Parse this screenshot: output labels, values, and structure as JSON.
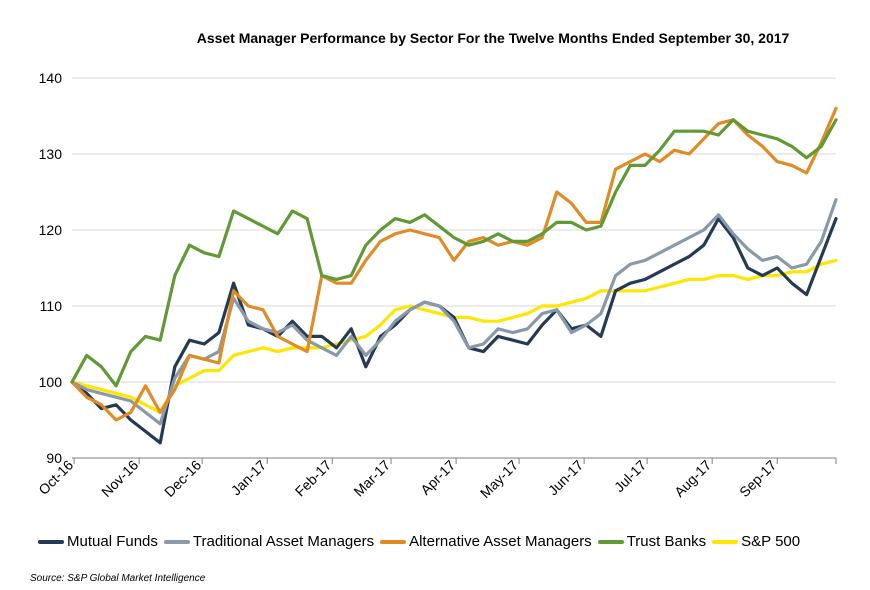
{
  "source_note": "Source: S&P Global Market Intelligence",
  "colors": {
    "mutual_funds": "#243a55",
    "traditional": "#8899aa",
    "alternative": "#e08b25",
    "trust_banks": "#5f9a35",
    "sp500": "#ffe500"
  },
  "chart_data": {
    "type": "line",
    "title": "Asset Manager Performance by Sector For the Twelve Months Ended September 30, 2017",
    "xlabel": "",
    "ylabel": "",
    "ylim": [
      90,
      140
    ],
    "yticks": [
      90,
      100,
      110,
      120,
      130,
      140
    ],
    "grid": "horizontal",
    "legend_position": "bottom",
    "x_tick_labels": [
      "Oct-16",
      "Nov-16",
      "Dec-16",
      "Jan-17",
      "Feb-17",
      "Mar-17",
      "Apr-17",
      "May-17",
      "Jun-17",
      "Jul-17",
      "Aug-17",
      "Sep-17"
    ],
    "x": [
      "2016-09-30",
      "2016-10-07",
      "2016-10-14",
      "2016-10-21",
      "2016-10-28",
      "2016-11-04",
      "2016-11-11",
      "2016-11-18",
      "2016-11-25",
      "2016-12-02",
      "2016-12-09",
      "2016-12-16",
      "2016-12-23",
      "2016-12-30",
      "2017-01-06",
      "2017-01-13",
      "2017-01-20",
      "2017-01-27",
      "2017-02-03",
      "2017-02-10",
      "2017-02-17",
      "2017-02-24",
      "2017-03-03",
      "2017-03-10",
      "2017-03-17",
      "2017-03-24",
      "2017-03-31",
      "2017-04-07",
      "2017-04-14",
      "2017-04-21",
      "2017-04-28",
      "2017-05-05",
      "2017-05-12",
      "2017-05-19",
      "2017-05-26",
      "2017-06-02",
      "2017-06-09",
      "2017-06-16",
      "2017-06-23",
      "2017-06-30",
      "2017-07-07",
      "2017-07-14",
      "2017-07-21",
      "2017-07-28",
      "2017-08-04",
      "2017-08-11",
      "2017-08-18",
      "2017-08-25",
      "2017-09-01",
      "2017-09-08",
      "2017-09-15",
      "2017-09-22",
      "2017-09-29"
    ],
    "series": [
      {
        "name": "Mutual Funds",
        "color_key": "mutual_funds",
        "values": [
          100,
          98.5,
          96.5,
          97,
          95,
          93.5,
          92,
          102,
          105.5,
          105,
          106.5,
          113,
          107.5,
          107,
          106,
          108,
          106,
          106,
          104.5,
          107,
          102,
          106,
          107.5,
          109.5,
          110.5,
          110,
          108.5,
          104.5,
          104,
          106,
          105.5,
          105,
          107.5,
          109.5,
          107,
          107.5,
          106,
          112,
          113,
          113.5,
          114.5,
          115.5,
          116.5,
          118,
          121.5,
          119,
          115,
          114,
          115,
          113,
          111.5,
          116.5,
          121.5
        ]
      },
      {
        "name": "Traditional Asset Managers",
        "color_key": "traditional",
        "values": [
          100,
          99,
          98.5,
          98,
          97.5,
          96,
          94.5,
          100.5,
          103.5,
          103,
          104,
          111,
          108,
          107,
          106.5,
          107.5,
          105.5,
          104.5,
          103.5,
          106,
          103.5,
          105.5,
          108,
          109.5,
          110.5,
          110,
          108,
          104.5,
          105,
          107,
          106.5,
          107,
          109,
          109.5,
          106.5,
          107.5,
          109,
          114,
          115.5,
          116,
          117,
          118,
          119,
          120,
          122,
          119.5,
          117.5,
          116,
          116.5,
          115,
          115.5,
          118.5,
          124
        ]
      },
      {
        "name": "Alternative Asset Managers",
        "color_key": "alternative",
        "values": [
          100,
          98,
          97,
          95,
          96,
          99.5,
          96,
          99,
          103.5,
          103,
          102.5,
          112,
          110,
          109.5,
          106,
          105,
          104,
          114,
          113,
          113,
          116,
          118.5,
          119.5,
          120,
          119.5,
          119,
          116,
          118.5,
          119,
          118,
          118.5,
          118,
          119,
          125,
          123.5,
          121,
          121,
          128,
          129,
          130,
          129,
          130.5,
          130,
          132,
          134,
          134.5,
          132.5,
          131,
          129,
          128.5,
          127.5,
          131.5,
          136
        ]
      },
      {
        "name": "Trust Banks",
        "color_key": "trust_banks",
        "values": [
          100,
          103.5,
          102,
          99.5,
          104,
          106,
          105.5,
          114,
          118,
          117,
          116.5,
          122.5,
          121.5,
          120.5,
          119.5,
          122.5,
          121.5,
          114,
          113.5,
          114,
          118,
          120,
          121.5,
          121,
          122,
          120.5,
          119,
          118,
          118.5,
          119.5,
          118.5,
          118.5,
          119.5,
          121,
          121,
          120,
          120.5,
          125,
          128.5,
          128.5,
          130.5,
          133,
          133,
          133,
          132.5,
          134.5,
          133,
          132.5,
          132,
          131,
          129.5,
          131,
          134.5
        ]
      },
      {
        "name": "S&P 500",
        "color_key": "sp500",
        "values": [
          100,
          99.5,
          99,
          98.5,
          98,
          97,
          96,
          99.5,
          100.5,
          101.5,
          101.5,
          103.5,
          104,
          104.5,
          104,
          104.5,
          104.5,
          104.5,
          105,
          105.5,
          106,
          107.5,
          109.5,
          110,
          109.5,
          109,
          108.5,
          108.5,
          108,
          108,
          108.5,
          109,
          110,
          110,
          110.5,
          111,
          112,
          112,
          112,
          112,
          112.5,
          113,
          113.5,
          113.5,
          114,
          114,
          113.5,
          114,
          114,
          114.5,
          114.5,
          115.5,
          116
        ]
      }
    ]
  }
}
